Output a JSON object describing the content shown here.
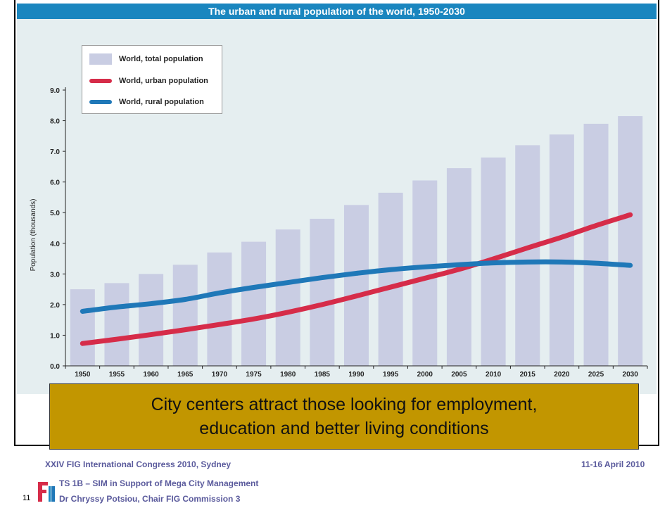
{
  "chart_data": {
    "type": "bar",
    "title": "The urban and rural population of the world, 1950-2030",
    "xlabel": "",
    "ylabel": "Population (thousands)",
    "ylim": [
      0,
      9
    ],
    "yticks": [
      "0.0",
      "1.0",
      "2.0",
      "3.0",
      "4.0",
      "5.0",
      "6.0",
      "7.0",
      "8.0",
      "9.0"
    ],
    "categories": [
      "1950",
      "1955",
      "1960",
      "1965",
      "1970",
      "1975",
      "1980",
      "1985",
      "1990",
      "1995",
      "2000",
      "2005",
      "2010",
      "2015",
      "2020",
      "2025",
      "2030"
    ],
    "series": [
      {
        "name": "World, total population",
        "kind": "bar",
        "color": "#c9cde3",
        "values": [
          2.5,
          2.7,
          3.0,
          3.3,
          3.7,
          4.05,
          4.45,
          4.8,
          5.25,
          5.65,
          6.05,
          6.45,
          6.8,
          7.2,
          7.55,
          7.9,
          8.15
        ]
      },
      {
        "name": "World, urban population",
        "kind": "line",
        "color": "#d62c49",
        "values": [
          0.73,
          0.87,
          1.02,
          1.18,
          1.35,
          1.53,
          1.75,
          2.0,
          2.28,
          2.57,
          2.86,
          3.15,
          3.49,
          3.85,
          4.2,
          4.58,
          4.93
        ]
      },
      {
        "name": "World, rural population",
        "kind": "line",
        "color": "#1f78b8",
        "values": [
          1.78,
          1.92,
          2.03,
          2.17,
          2.38,
          2.56,
          2.72,
          2.88,
          3.02,
          3.14,
          3.23,
          3.3,
          3.36,
          3.39,
          3.39,
          3.35,
          3.28
        ]
      }
    ],
    "grid": false,
    "legend_position": "top-left"
  },
  "callout": {
    "text": "City centers attract those looking for employment,\neducation and better living conditions"
  },
  "footer": {
    "congress": "XXIV FIG International Congress 2010,  Sydney",
    "dates": "11-16 April 2010",
    "session": "TS 1B – SIM in Support of Mega City Management",
    "author": "Dr Chryssy Potsiou,  Chair FIG Commission 3",
    "slide_number": "11"
  },
  "colors": {
    "title_bar": "#1a86bf",
    "chart_bg": "#e5eef0",
    "callout_bg": "#c29600",
    "footer_text": "#5a5a9c"
  },
  "logo": {
    "text": "FIG"
  }
}
